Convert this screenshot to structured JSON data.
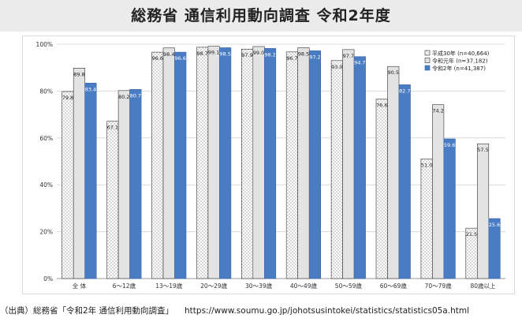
{
  "title": "総務省 通信利用動向調査 令和2年度",
  "source": {
    "label": "（出典）総務省「令和2年 通信利用動向調査」",
    "url": "https://www.soumu.go.jp/johotsusintokei/statistics/statistics05a.html"
  },
  "colors": {
    "series_h30_pattern": "#d4d4d4",
    "series_r1_fill": "#e3e3e3",
    "series_r2_fill": "#4a7cc4",
    "bar_edge": "#333333",
    "gridline": "#d9d9d9",
    "title_band": "#ebebeb"
  },
  "chart_data": {
    "type": "bar",
    "title": "",
    "xlabel": "",
    "ylabel": "",
    "ylim": [
      0,
      100
    ],
    "y_ticks": [
      "0%",
      "20%",
      "40%",
      "60%",
      "80%",
      "100%"
    ],
    "grid": true,
    "legend_position": "top-right",
    "categories": [
      "全 体",
      "6～12歳",
      "13～19歳",
      "20～29歳",
      "30～39歳",
      "40～49歳",
      "50～59歳",
      "60～69歳",
      "70～79歳",
      "80歳以上"
    ],
    "series": [
      {
        "name": "平成30年 (n=40,664)",
        "values": [
          79.8,
          67.1,
          96.6,
          98.7,
          97.9,
          96.7,
          93.0,
          76.6,
          51.0,
          21.5
        ],
        "labels": [
          "79.8",
          "67.1",
          "96.6",
          "98.7",
          "97.9",
          "96.7",
          "93.0",
          "76.6",
          "51.0",
          "21.5"
        ]
      },
      {
        "name": "令和元年 (n=37,182)",
        "values": [
          89.8,
          80.2,
          98.4,
          99.1,
          99.0,
          98.5,
          97.7,
          90.5,
          74.2,
          57.5
        ],
        "labels": [
          "89.8",
          "80.2",
          "98.4",
          "99.1",
          "99.0",
          "98.5",
          "97.7",
          "90.5",
          "74.2",
          "57.5"
        ]
      },
      {
        "name": "令和2年 (n=41,387)",
        "values": [
          83.4,
          80.7,
          96.6,
          98.5,
          98.2,
          97.2,
          94.7,
          82.7,
          59.6,
          25.6
        ],
        "labels": [
          "83.4",
          "80.7",
          "96.6",
          "98.5",
          "98.2",
          "97.2",
          "94.7",
          "82.7",
          "59.6",
          "25.6"
        ]
      }
    ]
  }
}
